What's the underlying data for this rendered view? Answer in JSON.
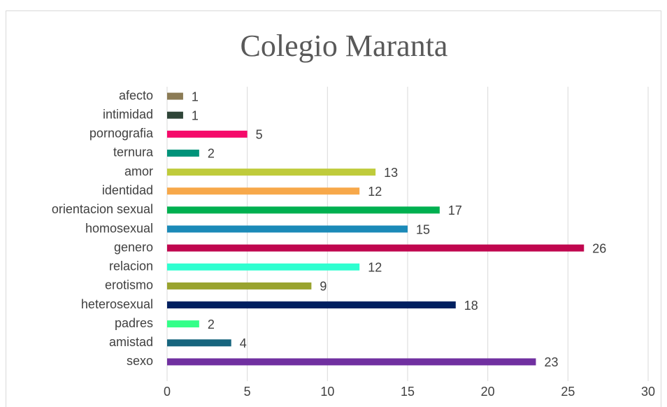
{
  "chart_data": {
    "type": "bar",
    "orientation": "horizontal",
    "title": "Colegio Maranta",
    "categories": [
      "afecto",
      "intimidad",
      "pornografia",
      "ternura",
      "amor",
      "identidad",
      "orientacion sexual",
      "homosexual",
      "genero",
      "relacion",
      "erotismo",
      "heterosexual",
      "padres",
      "amistad",
      "sexo"
    ],
    "values": [
      1,
      1,
      5,
      2,
      13,
      12,
      17,
      15,
      26,
      12,
      9,
      18,
      2,
      4,
      23
    ],
    "colors": [
      "#8b7b55",
      "#2f4538",
      "#f50a6a",
      "#00937a",
      "#bfcb3b",
      "#f7a84a",
      "#00b050",
      "#1b8ab8",
      "#c0064e",
      "#2fffd0",
      "#99a32e",
      "#002060",
      "#33ff88",
      "#17657e",
      "#7030a0"
    ],
    "xlim": [
      0,
      30
    ],
    "xticks": [
      0,
      5,
      10,
      15,
      20,
      25,
      30
    ],
    "grid": true
  }
}
